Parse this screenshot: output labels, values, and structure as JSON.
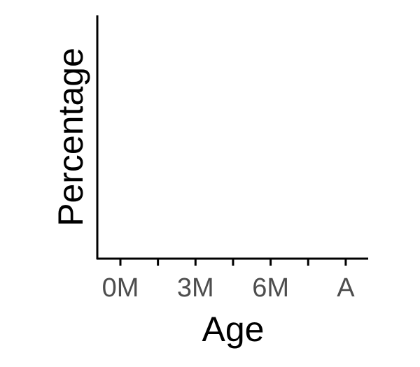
{
  "chart_data": {
    "type": "line",
    "title": "",
    "xlabel": "Age",
    "ylabel": "Percentage",
    "categories": [
      "0M",
      "3M",
      "6M",
      "A"
    ],
    "minor_ticks_between_categories": true,
    "series": [],
    "grid": false,
    "legend": "none"
  }
}
